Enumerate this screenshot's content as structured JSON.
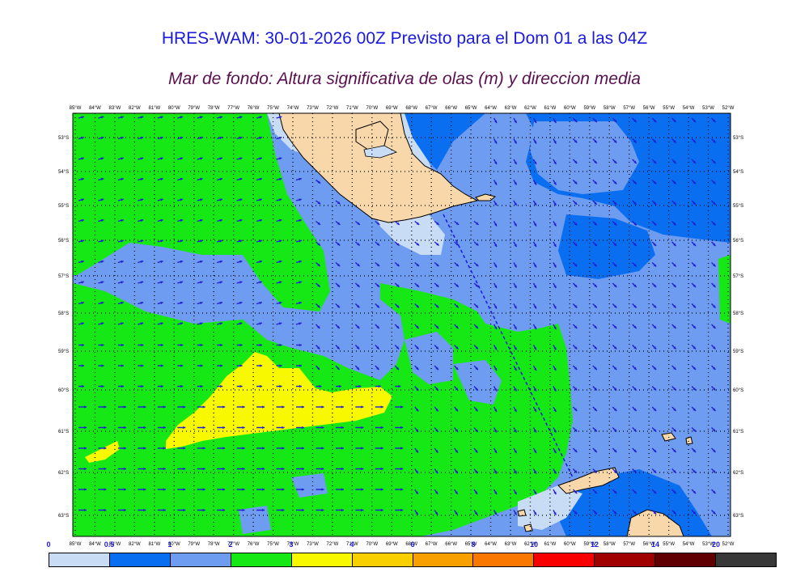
{
  "title": "HRES-WAM: 30-01-2026 00Z Previsto para el Dom 01 a las 04Z",
  "subtitle": "Mar de fondo: Altura significativa de olas (m) y direccion media",
  "lon_labels": [
    "85°W",
    "84°W",
    "83°W",
    "82°W",
    "81°W",
    "80°W",
    "79°W",
    "78°W",
    "77°W",
    "76°W",
    "75°W",
    "74°W",
    "73°W",
    "72°W",
    "71°W",
    "70°W",
    "69°W",
    "68°W",
    "67°W",
    "66°W",
    "65°W",
    "64°W",
    "63°W",
    "62°W",
    "61°W",
    "60°W",
    "59°W",
    "58°W",
    "57°W",
    "56°W",
    "55°W",
    "54°W",
    "53°W",
    "52°W"
  ],
  "lat_labels": [
    "53°S",
    "54°S",
    "55°S",
    "56°S",
    "57°S",
    "58°S",
    "59°S",
    "60°S",
    "61°S",
    "62°S",
    "63°S"
  ],
  "colorbar": {
    "ticks": [
      "0",
      "0.5",
      "1",
      "2",
      "3",
      "4",
      "6",
      "8",
      "10",
      "12",
      "14",
      "20"
    ],
    "colors": [
      "#c9dcf6",
      "#0a6ef0",
      "#6e9cf0",
      "#16e816",
      "#f8f800",
      "#f8d000",
      "#f8a000",
      "#f87800",
      "#f80000",
      "#a00000",
      "#600000",
      "#383838"
    ]
  },
  "legend_colors": {
    "land": "#f8d7aa",
    "very_low": "#c9dcf6",
    "low": "#0a6ef0",
    "mid_low": "#6e9cf0",
    "mid": "#16e816",
    "high": "#f8f800",
    "arrow": "#2020d0",
    "dots": "#000000"
  }
}
